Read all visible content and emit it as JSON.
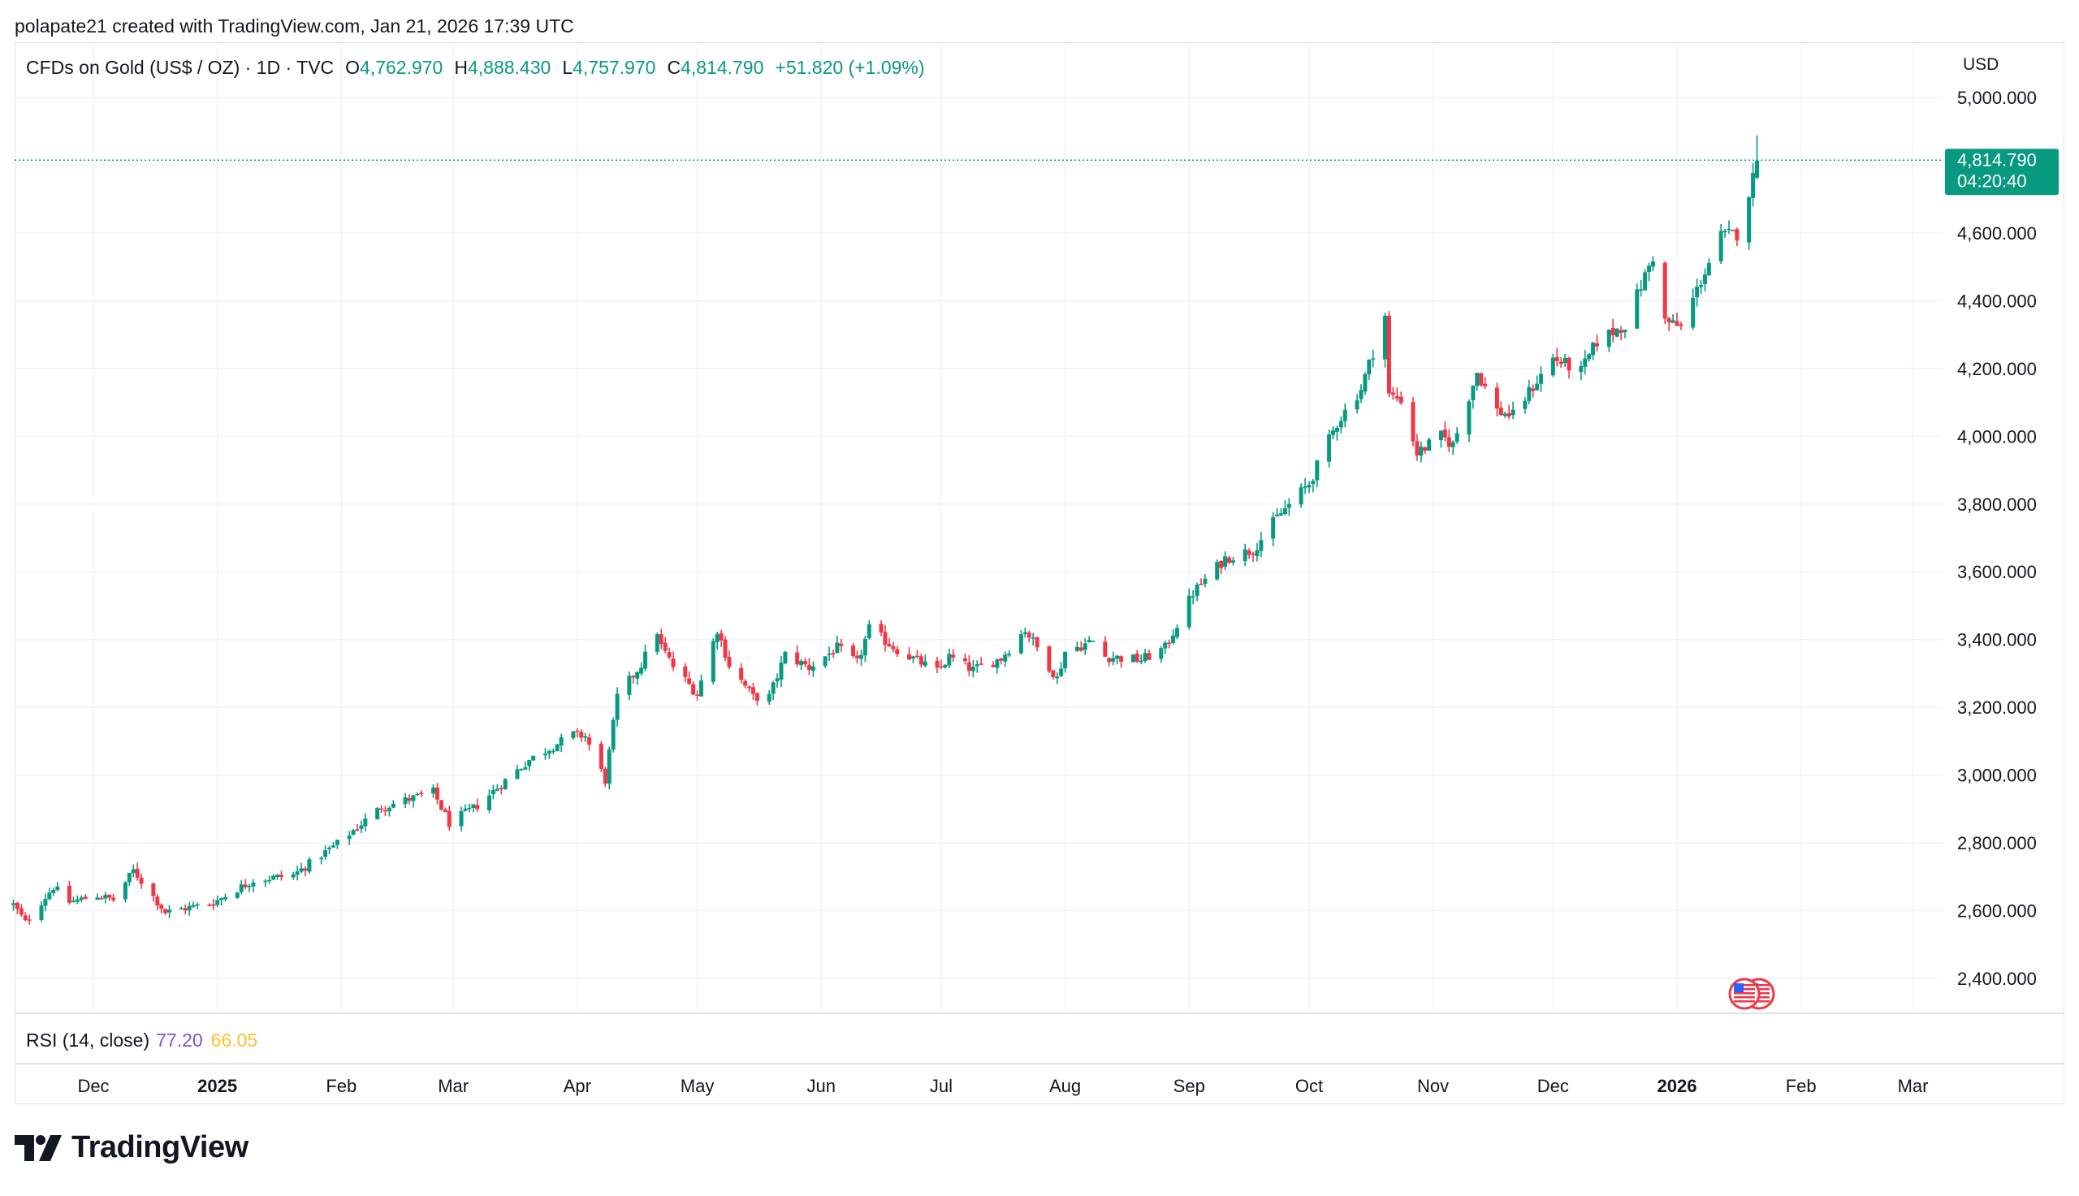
{
  "credit": "polapate21 created with TradingView.com, Jan 21, 2026 17:39 UTC",
  "legend": {
    "symbol": "CFDs on Gold (US$ / OZ) · 1D · TVC",
    "open_key": "O",
    "open": "4,762.970",
    "high_key": "H",
    "high": "4,888.430",
    "low_key": "L",
    "low": "4,757.970",
    "close_key": "C",
    "close": "4,814.790",
    "change": "+51.820 (+1.09%)"
  },
  "currency": "USD",
  "price_tag": {
    "price": "4,814.790",
    "countdown": "04:20:40"
  },
  "rsi": {
    "label": "RSI (14, close)",
    "value": "77.20",
    "ma": "66.05"
  },
  "brand": "TradingView",
  "colors": {
    "up": "#089981",
    "down": "#f23645",
    "grid": "#f0f3fa",
    "axis_text": "#131722",
    "rsi": "#7e57c2",
    "rsi_ma": "#fbc02d"
  },
  "icons": {
    "flag": "us-flag-icon",
    "logo": "tradingview-logo-icon"
  },
  "chart_data": {
    "type": "candlestick",
    "ylim": [
      2330,
      5090
    ],
    "y_ticks": [
      "5,000.000",
      "4,600.000",
      "4,400.000",
      "4,200.000",
      "4,000.000",
      "3,800.000",
      "3,600.000",
      "3,400.000",
      "3,200.000",
      "3,000.000",
      "2,800.000",
      "2,600.000",
      "2,400.000"
    ],
    "y_tick_values": [
      5000,
      4600,
      4400,
      4200,
      4000,
      3800,
      3600,
      3400,
      3200,
      3000,
      2800,
      2600,
      2400
    ],
    "x_ticks": [
      "Dec",
      "2025",
      "Feb",
      "Mar",
      "Apr",
      "May",
      "Jun",
      "Jul",
      "Aug",
      "Sep",
      "Oct",
      "Nov",
      "Dec",
      "2026",
      "Feb",
      "Mar"
    ],
    "x_tick_dates": [
      "2024-12-01",
      "2025-01-01",
      "2025-02-01",
      "2025-03-01",
      "2025-04-01",
      "2025-05-01",
      "2025-06-01",
      "2025-07-01",
      "2025-08-01",
      "2025-09-01",
      "2025-10-01",
      "2025-11-01",
      "2025-12-01",
      "2026-01-01",
      "2026-02-01",
      "2026-03-01"
    ],
    "x_tick_bold": [
      false,
      true,
      false,
      false,
      false,
      false,
      false,
      false,
      false,
      false,
      false,
      false,
      false,
      true,
      false,
      false
    ],
    "date_range": [
      "2024-11-11",
      "2026-01-21"
    ],
    "last_price": 4814.79,
    "close_anchors": [
      [
        "2024-11-11",
        2618
      ],
      [
        "2024-11-14",
        2565
      ],
      [
        "2024-11-21",
        2670
      ],
      [
        "2024-11-25",
        2625
      ],
      [
        "2024-12-02",
        2645
      ],
      [
        "2024-12-06",
        2632
      ],
      [
        "2024-12-11",
        2718
      ],
      [
        "2024-12-19",
        2595
      ],
      [
        "2024-12-31",
        2624
      ],
      [
        "2025-01-10",
        2690
      ],
      [
        "2025-01-20",
        2705
      ],
      [
        "2025-01-31",
        2798
      ],
      [
        "2025-02-11",
        2905
      ],
      [
        "2025-02-24",
        2950
      ],
      [
        "2025-02-28",
        2858
      ],
      [
        "2025-03-07",
        2910
      ],
      [
        "2025-03-14",
        2984
      ],
      [
        "2025-03-20",
        3045
      ],
      [
        "2025-03-31",
        3120
      ],
      [
        "2025-04-03",
        3115
      ],
      [
        "2025-04-08",
        2985
      ],
      [
        "2025-04-11",
        3230
      ],
      [
        "2025-04-17",
        3327
      ],
      [
        "2025-04-21",
        3425
      ],
      [
        "2025-04-22",
        3380
      ],
      [
        "2025-04-25",
        3320
      ],
      [
        "2025-05-01",
        3240
      ],
      [
        "2025-05-06",
        3430
      ],
      [
        "2025-05-09",
        3325
      ],
      [
        "2025-05-15",
        3230
      ],
      [
        "2025-05-19",
        3230
      ],
      [
        "2025-05-23",
        3355
      ],
      [
        "2025-05-29",
        3318
      ],
      [
        "2025-06-05",
        3375
      ],
      [
        "2025-06-10",
        3330
      ],
      [
        "2025-06-13",
        3432
      ],
      [
        "2025-06-20",
        3370
      ],
      [
        "2025-06-30",
        3305
      ],
      [
        "2025-07-03",
        3348
      ],
      [
        "2025-07-09",
        3310
      ],
      [
        "2025-07-16",
        3345
      ],
      [
        "2025-07-22",
        3430
      ],
      [
        "2025-07-30",
        3285
      ],
      [
        "2025-08-01",
        3365
      ],
      [
        "2025-08-08",
        3395
      ],
      [
        "2025-08-11",
        3350
      ],
      [
        "2025-08-20",
        3340
      ],
      [
        "2025-08-26",
        3375
      ],
      [
        "2025-09-02",
        3538
      ],
      [
        "2025-09-10",
        3640
      ],
      [
        "2025-09-17",
        3665
      ],
      [
        "2025-09-23",
        3760
      ],
      [
        "2025-10-01",
        3860
      ],
      [
        "2025-10-08",
        4040
      ],
      [
        "2025-10-14",
        4140
      ],
      [
        "2025-10-17",
        4250
      ],
      [
        "2025-10-20",
        4356
      ],
      [
        "2025-10-21",
        4120
      ],
      [
        "2025-10-24",
        4110
      ],
      [
        "2025-10-28",
        3950
      ],
      [
        "2025-11-03",
        4000
      ],
      [
        "2025-11-06",
        3975
      ],
      [
        "2025-11-12",
        4190
      ],
      [
        "2025-11-17",
        4075
      ],
      [
        "2025-11-21",
        4060
      ],
      [
        "2025-11-25",
        4130
      ],
      [
        "2025-12-01",
        4230
      ],
      [
        "2025-12-08",
        4190
      ],
      [
        "2025-12-12",
        4280
      ],
      [
        "2025-12-19",
        4330
      ],
      [
        "2025-12-26",
        4530
      ],
      [
        "2025-12-29",
        4340
      ],
      [
        "2026-01-02",
        4320
      ],
      [
        "2026-01-07",
        4460
      ],
      [
        "2026-01-12",
        4590
      ],
      [
        "2026-01-16",
        4598
      ],
      [
        "2026-01-20",
        4762
      ],
      [
        "2026-01-21",
        4814
      ]
    ],
    "annotations": [
      "us-flag-event-marker"
    ]
  }
}
